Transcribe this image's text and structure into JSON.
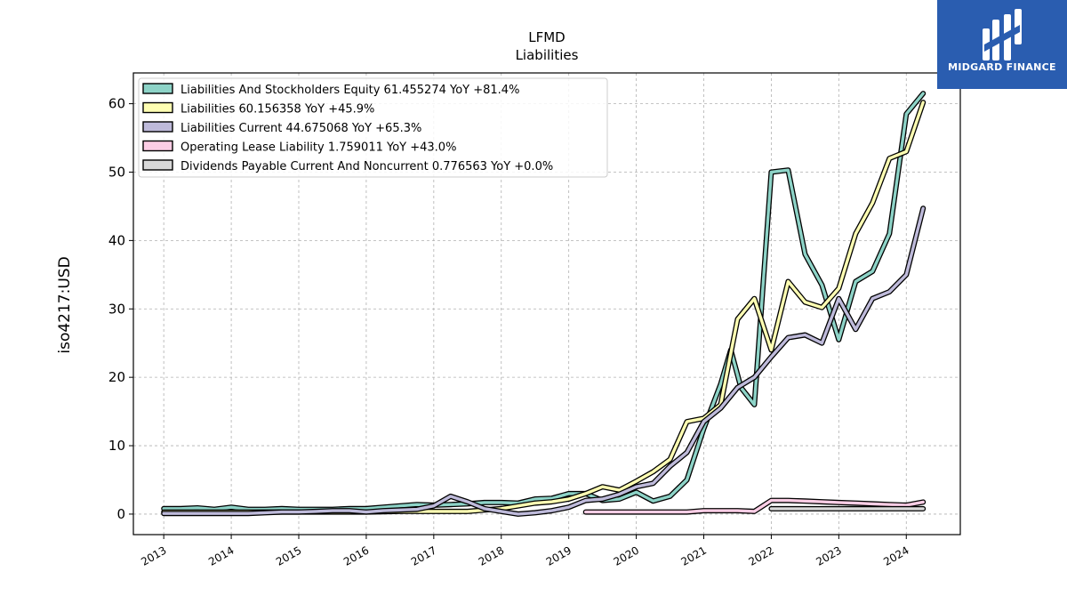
{
  "chart_data": {
    "type": "line",
    "title": "LFMD",
    "subtitle": "Liabilities",
    "ylabel": "iso4217:USD",
    "xlabel": "",
    "ylim": [
      -3,
      64.5
    ],
    "xlim": [
      2012.55,
      2024.8
    ],
    "yticks": [
      0,
      10,
      20,
      30,
      40,
      50,
      60
    ],
    "xticks": [
      2013,
      2014,
      2015,
      2016,
      2017,
      2018,
      2019,
      2020,
      2021,
      2022,
      2023,
      2024
    ],
    "grid": true,
    "legend_position": "top-left",
    "series": [
      {
        "name": "Liabilities And Stockholders Equity",
        "legend": "Liabilities And Stockholders Equity  61.455274 YoY +81.4%",
        "color": "#8dd3c7",
        "points": [
          [
            2013.0,
            0.8
          ],
          [
            2013.25,
            0.8
          ],
          [
            2013.5,
            0.9
          ],
          [
            2013.75,
            0.7
          ],
          [
            2014.0,
            1.0
          ],
          [
            2014.25,
            0.7
          ],
          [
            2014.5,
            0.7
          ],
          [
            2014.75,
            0.8
          ],
          [
            2015.0,
            0.7
          ],
          [
            2015.25,
            0.7
          ],
          [
            2015.5,
            0.7
          ],
          [
            2015.75,
            0.8
          ],
          [
            2016.0,
            0.8
          ],
          [
            2016.25,
            1.0
          ],
          [
            2016.5,
            1.2
          ],
          [
            2016.75,
            1.4
          ],
          [
            2017.0,
            1.3
          ],
          [
            2017.25,
            1.4
          ],
          [
            2017.5,
            1.5
          ],
          [
            2017.75,
            1.7
          ],
          [
            2018.0,
            1.7
          ],
          [
            2018.25,
            1.6
          ],
          [
            2018.5,
            2.2
          ],
          [
            2018.75,
            2.3
          ],
          [
            2019.0,
            3.0
          ],
          [
            2019.25,
            3.0
          ],
          [
            2019.5,
            2.0
          ],
          [
            2019.75,
            2.2
          ],
          [
            2020.0,
            3.2
          ],
          [
            2020.25,
            1.9
          ],
          [
            2020.5,
            2.6
          ],
          [
            2020.75,
            5.0
          ],
          [
            2021.0,
            12.5
          ],
          [
            2021.25,
            19.0
          ],
          [
            2021.4,
            24.0
          ],
          [
            2021.55,
            18.5
          ],
          [
            2021.75,
            16.0
          ],
          [
            2022.0,
            50.0
          ],
          [
            2022.25,
            50.3
          ],
          [
            2022.5,
            38.0
          ],
          [
            2022.75,
            33.5
          ],
          [
            2023.0,
            25.5
          ],
          [
            2023.25,
            34.0
          ],
          [
            2023.5,
            35.5
          ],
          [
            2023.75,
            41.0
          ],
          [
            2024.0,
            58.5
          ],
          [
            2024.25,
            61.5
          ]
        ]
      },
      {
        "name": "Liabilities",
        "legend": "Liabilities  60.156358 YoY +45.9%",
        "color": "#ffffb3",
        "points": [
          [
            2013.0,
            0.3
          ],
          [
            2013.5,
            0.3
          ],
          [
            2014.0,
            0.3
          ],
          [
            2014.5,
            0.3
          ],
          [
            2015.0,
            0.3
          ],
          [
            2015.5,
            0.3
          ],
          [
            2016.0,
            0.3
          ],
          [
            2016.5,
            0.4
          ],
          [
            2017.0,
            0.4
          ],
          [
            2017.5,
            0.4
          ],
          [
            2018.0,
            0.8
          ],
          [
            2018.25,
            1.2
          ],
          [
            2018.5,
            1.6
          ],
          [
            2018.75,
            1.8
          ],
          [
            2019.0,
            2.2
          ],
          [
            2019.25,
            3.0
          ],
          [
            2019.5,
            4.0
          ],
          [
            2019.75,
            3.5
          ],
          [
            2020.0,
            4.8
          ],
          [
            2020.25,
            6.2
          ],
          [
            2020.5,
            8.0
          ],
          [
            2020.75,
            13.5
          ],
          [
            2021.0,
            14.0
          ],
          [
            2021.25,
            16.0
          ],
          [
            2021.5,
            28.5
          ],
          [
            2021.75,
            31.5
          ],
          [
            2022.0,
            24.0
          ],
          [
            2022.25,
            34.0
          ],
          [
            2022.5,
            31.0
          ],
          [
            2022.75,
            30.2
          ],
          [
            2023.0,
            33.0
          ],
          [
            2023.25,
            41.0
          ],
          [
            2023.5,
            45.5
          ],
          [
            2023.75,
            52.0
          ],
          [
            2024.0,
            53.0
          ],
          [
            2024.25,
            60.2
          ]
        ]
      },
      {
        "name": "Liabilities Current",
        "legend": "Liabilities Current  44.675068 YoY +65.3%",
        "color": "#bebada",
        "points": [
          [
            2013.0,
            0.1
          ],
          [
            2013.25,
            0.1
          ],
          [
            2013.5,
            0.1
          ],
          [
            2013.75,
            0.1
          ],
          [
            2014.0,
            0.1
          ],
          [
            2014.25,
            0.1
          ],
          [
            2014.5,
            0.2
          ],
          [
            2014.75,
            0.3
          ],
          [
            2015.0,
            0.3
          ],
          [
            2015.25,
            0.4
          ],
          [
            2015.5,
            0.5
          ],
          [
            2015.75,
            0.5
          ],
          [
            2016.0,
            0.3
          ],
          [
            2016.25,
            0.5
          ],
          [
            2016.5,
            0.6
          ],
          [
            2016.75,
            0.7
          ],
          [
            2017.0,
            1.2
          ],
          [
            2017.25,
            2.6
          ],
          [
            2017.5,
            1.8
          ],
          [
            2017.75,
            0.8
          ],
          [
            2018.0,
            0.4
          ],
          [
            2018.25,
            0.0
          ],
          [
            2018.5,
            0.2
          ],
          [
            2018.75,
            0.5
          ],
          [
            2019.0,
            1.0
          ],
          [
            2019.25,
            2.0
          ],
          [
            2019.5,
            2.2
          ],
          [
            2019.75,
            2.9
          ],
          [
            2020.0,
            4.0
          ],
          [
            2020.25,
            4.5
          ],
          [
            2020.5,
            7.0
          ],
          [
            2020.75,
            9.0
          ],
          [
            2021.0,
            13.5
          ],
          [
            2021.25,
            15.5
          ],
          [
            2021.5,
            18.5
          ],
          [
            2021.75,
            20.0
          ],
          [
            2022.0,
            23.0
          ],
          [
            2022.25,
            25.8
          ],
          [
            2022.5,
            26.2
          ],
          [
            2022.75,
            25.0
          ],
          [
            2023.0,
            31.5
          ],
          [
            2023.25,
            27.0
          ],
          [
            2023.5,
            31.5
          ],
          [
            2023.75,
            32.5
          ],
          [
            2024.0,
            35.0
          ],
          [
            2024.25,
            44.7
          ]
        ]
      },
      {
        "name": "Operating Lease Liability",
        "legend": "Operating Lease Liability  1.759011 YoY +43.0%",
        "color": "#fccde5",
        "points": [
          [
            2019.25,
            0.3
          ],
          [
            2019.5,
            0.3
          ],
          [
            2019.75,
            0.3
          ],
          [
            2020.0,
            0.3
          ],
          [
            2020.25,
            0.3
          ],
          [
            2020.5,
            0.3
          ],
          [
            2020.75,
            0.3
          ],
          [
            2021.0,
            0.5
          ],
          [
            2021.25,
            0.5
          ],
          [
            2021.5,
            0.5
          ],
          [
            2021.75,
            0.4
          ],
          [
            2022.0,
            2.0
          ],
          [
            2022.25,
            2.0
          ],
          [
            2022.5,
            1.9
          ],
          [
            2022.75,
            1.8
          ],
          [
            2023.0,
            1.7
          ],
          [
            2023.25,
            1.6
          ],
          [
            2023.5,
            1.5
          ],
          [
            2023.75,
            1.4
          ],
          [
            2024.0,
            1.3
          ],
          [
            2024.25,
            1.76
          ]
        ]
      },
      {
        "name": "Dividends Payable Current And Noncurrent",
        "legend": "Dividends Payable Current And Noncurrent  0.776563 YoY +0.0%",
        "color": "#d9d9d9",
        "points": [
          [
            2022.0,
            0.78
          ],
          [
            2022.25,
            0.78
          ],
          [
            2022.5,
            0.78
          ],
          [
            2022.75,
            0.78
          ],
          [
            2023.0,
            0.78
          ],
          [
            2023.25,
            0.78
          ],
          [
            2023.5,
            0.78
          ],
          [
            2023.75,
            0.78
          ],
          [
            2024.0,
            0.78
          ],
          [
            2024.25,
            0.78
          ]
        ]
      }
    ]
  },
  "brand": {
    "name": "MIDGARD FINANCE",
    "logo": "midgard-logo-icon"
  }
}
